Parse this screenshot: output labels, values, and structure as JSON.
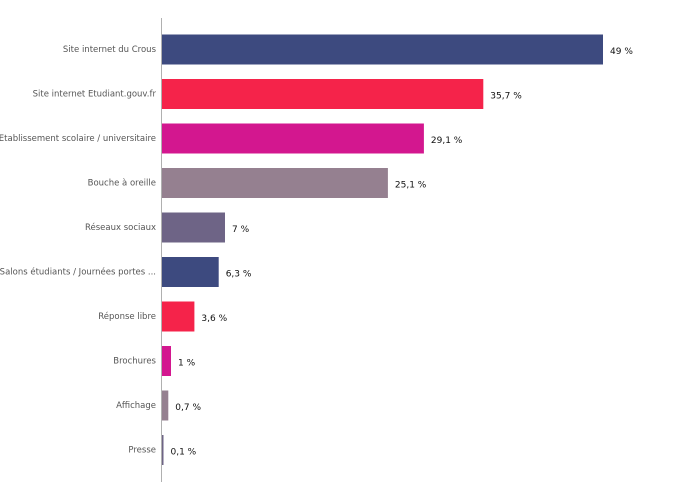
{
  "chart_data": {
    "type": "bar",
    "orientation": "horizontal",
    "title": "",
    "xlabel": "",
    "ylabel": "",
    "xlim": [
      0,
      49
    ],
    "grid": false,
    "legend": "none",
    "value_suffix": " %",
    "categories": [
      "Site internet du Crous",
      "Site internet Etudiant.gouv.fr",
      "Etablissement scolaire / universitaire",
      "Bouche à oreille",
      "Réseaux sociaux",
      "Salons étudiants / Journées portes ...",
      "Réponse libre",
      "Brochures",
      "Affichage",
      "Presse"
    ],
    "values": [
      49,
      35.7,
      29.1,
      25.1,
      7,
      6.3,
      3.6,
      1,
      0.7,
      0.1
    ],
    "value_labels": [
      "49 %",
      "35,7 %",
      "29,1 %",
      "25,1 %",
      "7 %",
      "6,3 %",
      "3,6 %",
      "1 %",
      "0,7 %",
      "0,1 %"
    ],
    "colors": [
      "#3d4a7f",
      "#f5234a",
      "#d3178f",
      "#958090",
      "#6e6486",
      "#3d4a7f",
      "#f5234a",
      "#d3178f",
      "#958090",
      "#6e6486"
    ],
    "axis_color": "#b0b0b0"
  }
}
